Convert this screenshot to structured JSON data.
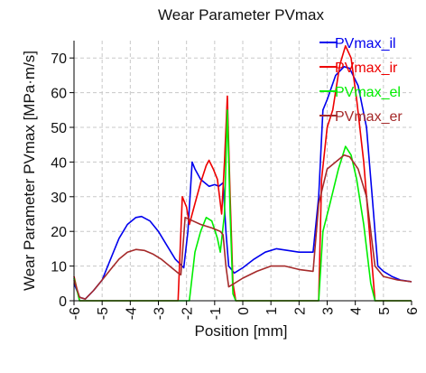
{
  "chart_data": {
    "type": "line",
    "title": "Wear Parameter PVmax",
    "xlabel": "Position [mm]",
    "ylabel": "Wear Parameter PVmax [MPa·m/s]",
    "xlim": [
      -6,
      6
    ],
    "ylim": [
      0,
      75
    ],
    "grid": true,
    "legend_position": "top-right",
    "x_ticks": [
      -6,
      -5,
      -4,
      -3,
      -2,
      -1,
      0,
      1,
      2,
      3,
      4,
      5,
      6
    ],
    "x_tick_labels": [
      "-6",
      "-5",
      "-4",
      "-3",
      "-2",
      "-1",
      "0",
      "1",
      "2",
      "3",
      "4",
      "5",
      "6"
    ],
    "y_ticks": [
      0,
      10,
      20,
      30,
      40,
      50,
      60,
      70
    ],
    "y_tick_labels": [
      "0",
      "10",
      "20",
      "30",
      "40",
      "50",
      "60",
      "70"
    ],
    "series": [
      {
        "name": "PVmax_il",
        "color": "#0000ee",
        "points": [
          [
            -6,
            5
          ],
          [
            -5.8,
            1
          ],
          [
            -5.6,
            0.5
          ],
          [
            -5.3,
            3
          ],
          [
            -5,
            6
          ],
          [
            -4.7,
            12
          ],
          [
            -4.4,
            18
          ],
          [
            -4.1,
            22
          ],
          [
            -3.8,
            24
          ],
          [
            -3.6,
            24.3
          ],
          [
            -3.3,
            23
          ],
          [
            -3,
            20
          ],
          [
            -2.7,
            16
          ],
          [
            -2.4,
            12
          ],
          [
            -2.1,
            9.5
          ],
          [
            -1.95,
            20
          ],
          [
            -1.8,
            40
          ],
          [
            -1.7,
            38
          ],
          [
            -1.5,
            35
          ],
          [
            -1.2,
            33
          ],
          [
            -1,
            33.5
          ],
          [
            -0.85,
            33
          ],
          [
            -0.7,
            34
          ],
          [
            -0.6,
            20
          ],
          [
            -0.5,
            10
          ],
          [
            -0.3,
            8
          ],
          [
            0,
            9.5
          ],
          [
            0.4,
            12
          ],
          [
            0.8,
            14
          ],
          [
            1.2,
            15
          ],
          [
            1.6,
            14.5
          ],
          [
            2,
            14
          ],
          [
            2.5,
            14
          ],
          [
            2.7,
            30
          ],
          [
            2.85,
            55
          ],
          [
            3,
            58
          ],
          [
            3.3,
            65
          ],
          [
            3.6,
            67.5
          ],
          [
            3.8,
            67
          ],
          [
            4.1,
            62
          ],
          [
            4.4,
            50
          ],
          [
            4.6,
            30
          ],
          [
            4.8,
            10
          ],
          [
            5,
            8.5
          ],
          [
            5.3,
            7
          ],
          [
            5.6,
            6
          ],
          [
            6,
            5.5
          ]
        ]
      },
      {
        "name": "PVmax_ir",
        "color": "#ee0000",
        "points": [
          [
            -6,
            7
          ],
          [
            -5.8,
            0
          ],
          [
            -5.6,
            0
          ],
          [
            -5.4,
            0
          ],
          [
            -5.2,
            0
          ],
          [
            -2.5,
            0
          ],
          [
            -2.3,
            0
          ],
          [
            -2.15,
            30
          ],
          [
            -2,
            27
          ],
          [
            -1.9,
            22
          ],
          [
            -1.7,
            28
          ],
          [
            -1.5,
            34
          ],
          [
            -1.3,
            39
          ],
          [
            -1.2,
            40.5
          ],
          [
            -1.05,
            38
          ],
          [
            -0.9,
            35
          ],
          [
            -0.75,
            25
          ],
          [
            -0.65,
            40
          ],
          [
            -0.55,
            59
          ],
          [
            -0.45,
            30
          ],
          [
            -0.35,
            5
          ],
          [
            -0.25,
            0
          ],
          [
            0,
            0
          ],
          [
            1,
            0
          ],
          [
            2,
            0
          ],
          [
            2.5,
            0
          ],
          [
            2.7,
            0
          ],
          [
            2.8,
            35
          ],
          [
            3,
            50
          ],
          [
            3.2,
            55
          ],
          [
            3.45,
            68
          ],
          [
            3.65,
            73.5
          ],
          [
            3.85,
            70
          ],
          [
            4.05,
            58
          ],
          [
            4.3,
            40
          ],
          [
            4.55,
            15
          ],
          [
            4.7,
            0
          ],
          [
            5,
            0
          ],
          [
            6,
            0
          ]
        ]
      },
      {
        "name": "PVmax_el",
        "color": "#00ee00",
        "points": [
          [
            -6,
            6.5
          ],
          [
            -5.8,
            0
          ],
          [
            -5.6,
            0
          ],
          [
            -5.2,
            0
          ],
          [
            -4,
            0
          ],
          [
            -3,
            0
          ],
          [
            -2.2,
            0
          ],
          [
            -1.9,
            0
          ],
          [
            -1.7,
            14
          ],
          [
            -1.5,
            20
          ],
          [
            -1.3,
            24
          ],
          [
            -1.1,
            23
          ],
          [
            -0.9,
            18
          ],
          [
            -0.8,
            14
          ],
          [
            -0.65,
            25
          ],
          [
            -0.55,
            55
          ],
          [
            -0.45,
            25
          ],
          [
            -0.35,
            2
          ],
          [
            -0.25,
            0
          ],
          [
            0,
            0
          ],
          [
            1,
            0
          ],
          [
            2,
            0
          ],
          [
            2.5,
            0
          ],
          [
            2.7,
            0
          ],
          [
            2.85,
            20
          ],
          [
            3.1,
            28
          ],
          [
            3.4,
            38
          ],
          [
            3.65,
            44.5
          ],
          [
            3.85,
            42
          ],
          [
            4.05,
            35
          ],
          [
            4.3,
            22
          ],
          [
            4.55,
            5
          ],
          [
            4.7,
            0
          ],
          [
            5,
            0
          ],
          [
            6,
            0
          ]
        ]
      },
      {
        "name": "PVmax_er",
        "color": "#a52a2a",
        "points": [
          [
            -6,
            6
          ],
          [
            -5.8,
            1
          ],
          [
            -5.6,
            0.5
          ],
          [
            -5.3,
            3
          ],
          [
            -5,
            6
          ],
          [
            -4.7,
            9
          ],
          [
            -4.4,
            12
          ],
          [
            -4.1,
            14
          ],
          [
            -3.8,
            14.8
          ],
          [
            -3.5,
            14.5
          ],
          [
            -3.2,
            13.5
          ],
          [
            -2.9,
            12
          ],
          [
            -2.6,
            10
          ],
          [
            -2.3,
            8
          ],
          [
            -2.2,
            7.5
          ],
          [
            -2.05,
            24
          ],
          [
            -1.9,
            23.5
          ],
          [
            -1.5,
            22
          ],
          [
            -1.1,
            21
          ],
          [
            -0.8,
            20
          ],
          [
            -0.7,
            19
          ],
          [
            -0.6,
            10
          ],
          [
            -0.5,
            4
          ],
          [
            -0.3,
            5
          ],
          [
            0,
            6.5
          ],
          [
            0.5,
            8.5
          ],
          [
            1,
            10
          ],
          [
            1.5,
            10
          ],
          [
            2,
            9
          ],
          [
            2.5,
            8.5
          ],
          [
            2.7,
            28
          ],
          [
            3,
            38
          ],
          [
            3.3,
            40
          ],
          [
            3.6,
            42
          ],
          [
            3.8,
            41.5
          ],
          [
            4.1,
            38
          ],
          [
            4.4,
            30
          ],
          [
            4.7,
            10
          ],
          [
            5,
            7
          ],
          [
            5.5,
            6
          ],
          [
            6,
            5.5
          ]
        ]
      }
    ]
  }
}
